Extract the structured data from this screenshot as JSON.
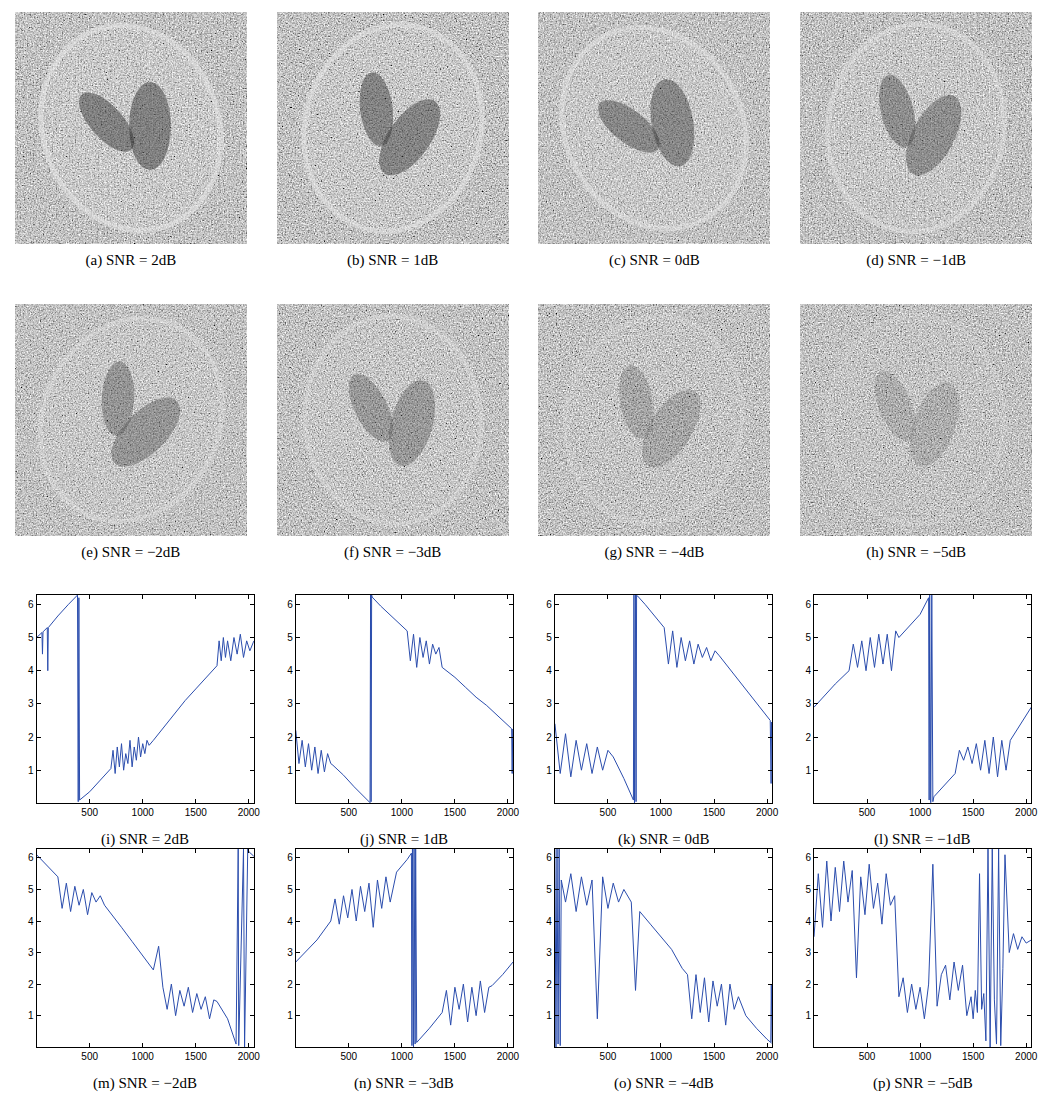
{
  "images": [
    {
      "title": "(a) SNR = 2dB"
    },
    {
      "title": "(b) SNR = 1dB"
    },
    {
      "title": "(c) SNR = 0dB"
    },
    {
      "title": "(d) SNR = −1dB"
    },
    {
      "title": "(e) SNR = −2dB"
    },
    {
      "title": "(f) SNR = −3dB"
    },
    {
      "title": "(g) SNR = −4dB"
    },
    {
      "title": "(h) SNR = −5dB"
    }
  ],
  "chart_data": [
    {
      "type": "line",
      "title": "(i) SNR = 2dB",
      "color": "#2b4dad",
      "grid": false,
      "xlim": [
        0,
        2048
      ],
      "xticks": [
        500,
        1000,
        1500,
        2000
      ],
      "ylim": [
        0,
        6.28
      ],
      "yticks": [
        1,
        2,
        3,
        4,
        5,
        6
      ],
      "x": [
        0,
        50,
        55,
        60,
        100,
        105,
        110,
        200,
        300,
        385,
        392,
        398,
        405,
        500,
        600,
        700,
        720,
        740,
        760,
        780,
        800,
        820,
        840,
        860,
        880,
        900,
        920,
        940,
        960,
        980,
        1000,
        1020,
        1040,
        1060,
        1100,
        1200,
        1300,
        1400,
        1500,
        1600,
        1700,
        1720,
        1740,
        1760,
        1780,
        1800,
        1830,
        1860,
        1890,
        1920,
        1950,
        1980,
        2010,
        2048
      ],
      "values": [
        5.0,
        5.15,
        4.5,
        5.17,
        5.3,
        4.0,
        5.3,
        5.65,
        6.0,
        6.28,
        0.05,
        6.2,
        0.1,
        0.35,
        0.7,
        1.05,
        1.6,
        0.9,
        1.7,
        1.1,
        1.8,
        1.0,
        1.5,
        1.2,
        1.9,
        1.1,
        1.7,
        1.3,
        2.0,
        1.4,
        1.8,
        1.5,
        1.9,
        1.75,
        1.9,
        2.3,
        2.7,
        3.1,
        3.45,
        3.8,
        4.15,
        4.9,
        4.3,
        5.0,
        4.4,
        4.9,
        4.3,
        5.0,
        4.5,
        5.1,
        4.4,
        4.9,
        4.6,
        4.9
      ]
    },
    {
      "type": "line",
      "title": "(j) SNR = 1dB",
      "color": "#2b4dad",
      "grid": false,
      "xlim": [
        0,
        2048
      ],
      "xticks": [
        500,
        1000,
        1500,
        2000
      ],
      "ylim": [
        0,
        6.28
      ],
      "yticks": [
        1,
        2,
        3,
        4,
        5,
        6
      ],
      "x": [
        0,
        30,
        60,
        90,
        120,
        150,
        180,
        210,
        240,
        270,
        300,
        330,
        350,
        450,
        550,
        650,
        700,
        705,
        710,
        715,
        720,
        800,
        900,
        1000,
        1050,
        1080,
        1110,
        1140,
        1170,
        1200,
        1230,
        1260,
        1290,
        1320,
        1350,
        1380,
        1500,
        1600,
        1700,
        1800,
        1900,
        2000,
        2035,
        2040,
        2045,
        2048
      ],
      "values": [
        2.2,
        1.2,
        1.9,
        1.1,
        1.8,
        1.0,
        1.7,
        0.9,
        1.6,
        0.95,
        1.5,
        1.2,
        1.15,
        0.85,
        0.5,
        0.17,
        0.02,
        6.28,
        0.05,
        6.28,
        6.22,
        5.95,
        5.65,
        5.35,
        5.2,
        4.3,
        5.1,
        4.1,
        5.0,
        4.4,
        4.9,
        4.2,
        4.8,
        4.5,
        4.7,
        4.1,
        3.8,
        3.5,
        3.2,
        2.95,
        2.65,
        2.35,
        2.25,
        0.9,
        2.24,
        2.22
      ]
    },
    {
      "type": "line",
      "title": "(k) SNR = 0dB",
      "color": "#2b4dad",
      "grid": false,
      "xlim": [
        0,
        2048
      ],
      "xticks": [
        500,
        1000,
        1500,
        2000
      ],
      "ylim": [
        0,
        6.28
      ],
      "yticks": [
        1,
        2,
        3,
        4,
        5,
        6
      ],
      "x": [
        0,
        50,
        100,
        150,
        200,
        250,
        300,
        350,
        400,
        450,
        500,
        550,
        650,
        740,
        745,
        750,
        760,
        765,
        770,
        780,
        850,
        950,
        1030,
        1070,
        1110,
        1150,
        1190,
        1230,
        1270,
        1310,
        1350,
        1390,
        1430,
        1470,
        1510,
        1550,
        1650,
        1750,
        1850,
        1950,
        2030,
        2038,
        2042,
        2048
      ],
      "values": [
        2.4,
        0.9,
        2.1,
        0.8,
        1.9,
        1.0,
        1.8,
        0.9,
        1.7,
        1.0,
        1.6,
        1.4,
        0.75,
        0.1,
        6.28,
        0.0,
        6.28,
        0.05,
        6.28,
        6.25,
        6.0,
        5.6,
        5.3,
        4.2,
        5.2,
        4.1,
        5.0,
        4.3,
        4.9,
        4.2,
        4.8,
        4.4,
        4.7,
        4.3,
        4.6,
        4.45,
        4.05,
        3.65,
        3.25,
        2.85,
        2.5,
        0.6,
        2.45,
        2.4
      ]
    },
    {
      "type": "line",
      "title": "(l) SNR = −1dB",
      "color": "#2b4dad",
      "grid": false,
      "xlim": [
        0,
        2048
      ],
      "xticks": [
        500,
        1000,
        1500,
        2000
      ],
      "ylim": [
        0,
        6.28
      ],
      "yticks": [
        1,
        2,
        3,
        4,
        5,
        6
      ],
      "x": [
        0,
        100,
        200,
        330,
        370,
        410,
        450,
        490,
        530,
        570,
        610,
        650,
        690,
        730,
        770,
        800,
        900,
        1000,
        1080,
        1085,
        1090,
        1100,
        1110,
        1120,
        1130,
        1230,
        1330,
        1370,
        1410,
        1450,
        1490,
        1530,
        1570,
        1610,
        1650,
        1690,
        1730,
        1770,
        1810,
        1850,
        1950,
        2048
      ],
      "values": [
        2.9,
        3.25,
        3.6,
        4.0,
        4.8,
        4.1,
        4.9,
        4.0,
        5.0,
        4.1,
        5.1,
        4.2,
        5.1,
        4.0,
        5.2,
        5.0,
        5.35,
        5.7,
        6.2,
        0.1,
        6.28,
        0.02,
        6.28,
        0.05,
        0.2,
        0.55,
        0.9,
        1.6,
        1.3,
        1.7,
        1.2,
        1.8,
        1.0,
        1.9,
        0.9,
        2.0,
        0.8,
        1.9,
        1.0,
        1.9,
        2.4,
        2.9
      ]
    },
    {
      "type": "line",
      "title": "(m) SNR = −2dB",
      "color": "#2b4dad",
      "grid": false,
      "xlim": [
        0,
        2048
      ],
      "xticks": [
        500,
        1000,
        1500,
        2000
      ],
      "ylim": [
        0,
        6.28
      ],
      "yticks": [
        1,
        2,
        3,
        4,
        5,
        6
      ],
      "x": [
        0,
        100,
        200,
        240,
        280,
        320,
        360,
        400,
        440,
        480,
        520,
        560,
        600,
        640,
        700,
        800,
        900,
        1000,
        1100,
        1150,
        1190,
        1230,
        1270,
        1310,
        1350,
        1390,
        1430,
        1470,
        1510,
        1550,
        1590,
        1630,
        1670,
        1700,
        1800,
        1880,
        1900,
        1905,
        1950,
        1960,
        1990,
        2000,
        2048
      ],
      "values": [
        6.1,
        5.75,
        5.4,
        4.4,
        5.2,
        4.3,
        5.1,
        4.5,
        5.0,
        4.2,
        4.9,
        4.6,
        4.8,
        4.5,
        4.25,
        3.8,
        3.35,
        2.9,
        2.45,
        3.2,
        1.9,
        1.2,
        2.0,
        1.0,
        1.8,
        1.3,
        1.9,
        1.1,
        1.7,
        1.2,
        1.6,
        0.9,
        1.5,
        1.45,
        0.9,
        0.1,
        6.28,
        0.05,
        6.28,
        0.0,
        6.28,
        6.2,
        6.05
      ]
    },
    {
      "type": "line",
      "title": "(n) SNR = −3dB",
      "color": "#2b4dad",
      "grid": false,
      "xlim": [
        0,
        2048
      ],
      "xticks": [
        500,
        1000,
        1500,
        2000
      ],
      "ylim": [
        0,
        6.28
      ],
      "yticks": [
        1,
        2,
        3,
        4,
        5,
        6
      ],
      "x": [
        0,
        100,
        200,
        330,
        370,
        410,
        450,
        490,
        530,
        570,
        610,
        650,
        690,
        730,
        770,
        810,
        850,
        890,
        950,
        1050,
        1090,
        1095,
        1100,
        1110,
        1115,
        1125,
        1130,
        1140,
        1260,
        1380,
        1420,
        1460,
        1500,
        1540,
        1580,
        1620,
        1660,
        1700,
        1740,
        1780,
        1820,
        1850,
        1950,
        2048
      ],
      "values": [
        2.7,
        3.05,
        3.4,
        4.0,
        4.7,
        3.9,
        4.8,
        4.1,
        5.0,
        4.0,
        5.1,
        4.3,
        5.2,
        3.8,
        5.3,
        4.4,
        5.4,
        4.6,
        5.55,
        5.95,
        6.15,
        0.05,
        6.28,
        0.0,
        6.28,
        0.1,
        6.28,
        0.15,
        0.6,
        1.1,
        1.8,
        0.7,
        1.9,
        1.2,
        2.0,
        0.8,
        1.9,
        1.0,
        2.1,
        1.1,
        1.9,
        1.95,
        2.3,
        2.7
      ]
    },
    {
      "type": "line",
      "title": "(o) SNR = −4dB",
      "color": "#2b4dad",
      "grid": false,
      "xlim": [
        0,
        2048
      ],
      "xticks": [
        500,
        1000,
        1500,
        2000
      ],
      "ylim": [
        0,
        6.28
      ],
      "yticks": [
        1,
        2,
        3,
        4,
        5,
        6
      ],
      "x": [
        0,
        10,
        20,
        30,
        40,
        50,
        60,
        100,
        150,
        200,
        250,
        300,
        350,
        400,
        450,
        500,
        550,
        600,
        650,
        700,
        720,
        760,
        800,
        900,
        1000,
        1100,
        1200,
        1250,
        1290,
        1330,
        1370,
        1410,
        1450,
        1490,
        1530,
        1570,
        1610,
        1650,
        1690,
        1730,
        1800,
        1900,
        2000,
        2035,
        2040,
        2048
      ],
      "values": [
        6.28,
        0.0,
        6.28,
        0.1,
        6.28,
        0.05,
        5.3,
        4.6,
        5.5,
        4.3,
        5.4,
        4.5,
        5.3,
        0.9,
        5.4,
        4.4,
        5.2,
        4.6,
        5.0,
        4.7,
        4.6,
        1.8,
        4.3,
        3.9,
        3.5,
        3.1,
        2.5,
        2.3,
        0.9,
        2.3,
        1.1,
        2.2,
        0.8,
        2.1,
        1.3,
        2.0,
        0.7,
        2.0,
        1.2,
        1.6,
        1.0,
        0.6,
        0.25,
        0.15,
        2.0,
        0.1
      ]
    },
    {
      "type": "line",
      "title": "(p) SNR = −5dB",
      "color": "#2b4dad",
      "grid": false,
      "xlim": [
        0,
        2048
      ],
      "xticks": [
        500,
        1000,
        1500,
        2000
      ],
      "ylim": [
        0,
        6.28
      ],
      "yticks": [
        1,
        2,
        3,
        4,
        5,
        6
      ],
      "x": [
        0,
        40,
        80,
        120,
        160,
        200,
        240,
        280,
        320,
        360,
        400,
        440,
        480,
        520,
        560,
        600,
        640,
        680,
        720,
        760,
        800,
        840,
        880,
        920,
        960,
        1000,
        1040,
        1080,
        1120,
        1160,
        1200,
        1240,
        1280,
        1320,
        1360,
        1400,
        1440,
        1480,
        1500,
        1520,
        1540,
        1560,
        1580,
        1600,
        1620,
        1640,
        1660,
        1680,
        1700,
        1720,
        1740,
        1760,
        1780,
        1800,
        1840,
        1880,
        1920,
        1960,
        2000,
        2048
      ],
      "values": [
        3.5,
        5.5,
        3.8,
        5.9,
        4.0,
        5.7,
        4.3,
        5.9,
        4.6,
        5.6,
        2.2,
        5.4,
        4.2,
        5.8,
        4.4,
        5.2,
        3.9,
        5.5,
        4.5,
        4.8,
        1.6,
        2.2,
        1.1,
        2.0,
        1.2,
        1.9,
        0.9,
        2.0,
        5.8,
        1.3,
        2.3,
        2.6,
        1.5,
        2.7,
        1.8,
        2.6,
        1.0,
        1.6,
        0.9,
        1.8,
        1.1,
        5.5,
        1.2,
        1.7,
        0.2,
        6.28,
        0.0,
        6.28,
        1.5,
        0.1,
        6.28,
        0.05,
        2.5,
        6.1,
        3.0,
        3.6,
        3.1,
        3.5,
        3.3,
        3.4
      ]
    }
  ]
}
